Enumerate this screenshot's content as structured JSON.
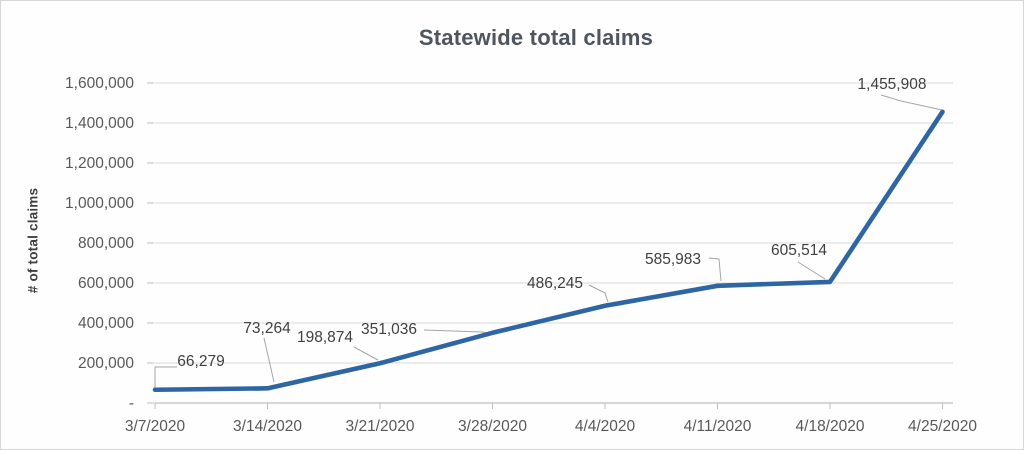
{
  "chart_data": {
    "type": "line",
    "title": "Statewide total claims",
    "ylabel": "# of total claims",
    "xlabel": "",
    "x": [
      "3/7/2020",
      "3/14/2020",
      "3/21/2020",
      "3/28/2020",
      "4/4/2020",
      "4/11/2020",
      "4/18/2020",
      "4/25/2020"
    ],
    "series": [
      {
        "name": "Statewide total claims",
        "values": [
          66279,
          73264,
          198874,
          351036,
          486245,
          585983,
          605514,
          1455908
        ]
      }
    ],
    "data_labels": [
      "66,279",
      "73,264",
      "198,874",
      "351,036",
      "486,245",
      "585,983",
      "605,514",
      "1,455,908"
    ],
    "ylim": [
      0,
      1600000
    ],
    "ytick_step": 200000,
    "ytick_labels": [
      "-",
      "200,000",
      "400,000",
      "600,000",
      "800,000",
      "1,000,000",
      "1,200,000",
      "1,400,000",
      "1,600,000"
    ],
    "grid": true,
    "legend": "none",
    "colors": {
      "line": "#2e66a3",
      "grid": "#d9d9d9",
      "axis": "#bfbfbf",
      "leader": "#a6a6a6",
      "title_text": "#4e555e",
      "tick_text": "#595959",
      "label_text": "#404040"
    }
  }
}
